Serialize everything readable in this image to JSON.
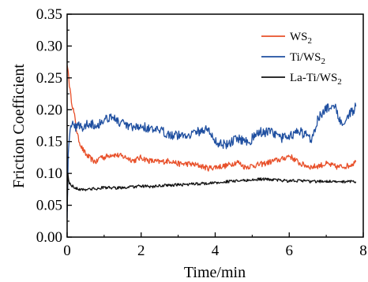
{
  "chart_data": {
    "type": "line",
    "xlabel": "Time/min",
    "ylabel": "Friction Coefficient",
    "xlim": [
      0,
      8
    ],
    "ylim": [
      0,
      0.35
    ],
    "xticks": [
      "0",
      "2",
      "4",
      "6",
      "8"
    ],
    "yticks": [
      "0.00",
      "0.05",
      "0.10",
      "0.15",
      "0.20",
      "0.25",
      "0.30",
      "0.35"
    ],
    "grid": false,
    "legend_position": "top-right",
    "series": [
      {
        "name": "WS2",
        "label_main": "WS",
        "label_sub": "2",
        "color": "#e8502a",
        "x": [
          0,
          0.03,
          0.06,
          0.1,
          0.15,
          0.2,
          0.25,
          0.3,
          0.4,
          0.5,
          0.6,
          0.7,
          0.8,
          0.9,
          1.0,
          1.2,
          1.4,
          1.6,
          1.8,
          2.0,
          2.2,
          2.5,
          2.8,
          3.0,
          3.3,
          3.6,
          3.8,
          4.0,
          4.3,
          4.6,
          4.8,
          5.0,
          5.3,
          5.6,
          5.8,
          6.0,
          6.3,
          6.6,
          6.8,
          7.0,
          7.3,
          7.6,
          7.8
        ],
        "y": [
          0.27,
          0.26,
          0.24,
          0.22,
          0.205,
          0.19,
          0.17,
          0.155,
          0.14,
          0.13,
          0.125,
          0.12,
          0.118,
          0.127,
          0.125,
          0.13,
          0.128,
          0.125,
          0.12,
          0.125,
          0.12,
          0.118,
          0.12,
          0.115,
          0.115,
          0.112,
          0.108,
          0.11,
          0.112,
          0.118,
          0.11,
          0.112,
          0.115,
          0.12,
          0.122,
          0.128,
          0.115,
          0.11,
          0.112,
          0.115,
          0.11,
          0.112,
          0.118
        ]
      },
      {
        "name": "Ti/WS2",
        "label_main": "Ti/WS",
        "label_sub": "2",
        "color": "#1f4fa0",
        "x": [
          0,
          0.03,
          0.06,
          0.1,
          0.15,
          0.2,
          0.3,
          0.4,
          0.5,
          0.6,
          0.8,
          1.0,
          1.2,
          1.4,
          1.6,
          1.8,
          2.0,
          2.3,
          2.6,
          2.9,
          3.2,
          3.5,
          3.8,
          4.0,
          4.3,
          4.6,
          4.9,
          5.2,
          5.5,
          5.8,
          6.0,
          6.3,
          6.6,
          6.8,
          7.0,
          7.2,
          7.4,
          7.6,
          7.8
        ],
        "y": [
          0.03,
          0.13,
          0.16,
          0.18,
          0.175,
          0.17,
          0.18,
          0.17,
          0.175,
          0.18,
          0.175,
          0.185,
          0.19,
          0.18,
          0.175,
          0.17,
          0.175,
          0.168,
          0.165,
          0.16,
          0.16,
          0.165,
          0.17,
          0.15,
          0.145,
          0.155,
          0.15,
          0.165,
          0.165,
          0.155,
          0.16,
          0.165,
          0.155,
          0.19,
          0.2,
          0.21,
          0.18,
          0.19,
          0.205
        ]
      },
      {
        "name": "La-Ti/WS2",
        "label_main": "La-Ti/WS",
        "label_sub": "2",
        "color": "#111111",
        "x": [
          0,
          0.02,
          0.04,
          0.06,
          0.1,
          0.15,
          0.2,
          0.3,
          0.5,
          0.8,
          1.0,
          1.3,
          1.6,
          2.0,
          2.3,
          2.6,
          3.0,
          3.3,
          3.6,
          4.0,
          4.3,
          4.6,
          5.0,
          5.3,
          5.6,
          6.0,
          6.3,
          6.6,
          7.0,
          7.3,
          7.6,
          7.8
        ],
        "y": [
          0.04,
          0.1,
          0.09,
          0.085,
          0.082,
          0.08,
          0.078,
          0.075,
          0.075,
          0.076,
          0.078,
          0.077,
          0.078,
          0.08,
          0.079,
          0.081,
          0.082,
          0.083,
          0.084,
          0.085,
          0.087,
          0.088,
          0.09,
          0.091,
          0.09,
          0.088,
          0.089,
          0.087,
          0.088,
          0.086,
          0.088,
          0.087
        ]
      }
    ]
  }
}
